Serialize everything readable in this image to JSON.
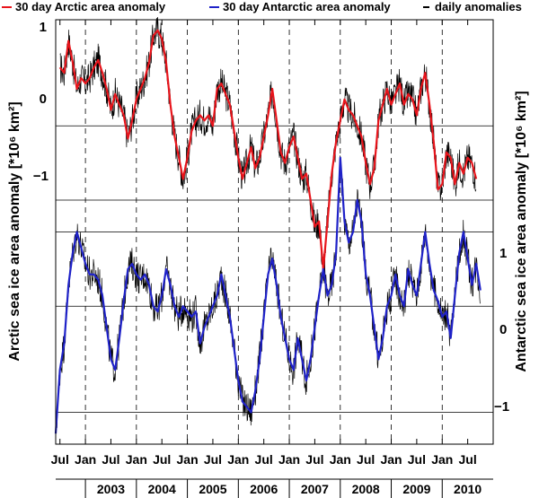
{
  "chart_data": {
    "type": "line",
    "legend": {
      "placement": "top",
      "entries": [
        {
          "label": "30 day Arctic area anomaly",
          "color": "#e8141b"
        },
        {
          "label": "30 day Antarctic area anomaly",
          "color": "#1f22c8"
        },
        {
          "label": "daily anomalies",
          "color": "#000000"
        }
      ]
    },
    "x": {
      "type": "date",
      "range": [
        "2002-06-01",
        "2011-01-01"
      ],
      "month_ticks": [
        "Jul",
        "Jan",
        "Jul",
        "Jan",
        "Jul",
        "Jan",
        "Jul",
        "Jan",
        "Jul",
        "Jan",
        "Jul",
        "Jan",
        "Jul",
        "Jan",
        "Jul",
        "Jan",
        "Jul"
      ],
      "year_labels": [
        "2003",
        "2004",
        "2005",
        "2006",
        "2007",
        "2008",
        "2009",
        "2010"
      ]
    },
    "left_axis": {
      "label": "Arctic sea ice area anomaly [*10⁶ km²]",
      "range": [
        -3.0,
        1.0
      ],
      "tick_labels": [
        "1",
        "0",
        "−1"
      ],
      "ticks": [
        1,
        0,
        -1
      ]
    },
    "right_axis": {
      "label": "Antarctic sea ice area anomaly [*10⁶ km²]",
      "range": [
        -1.3,
        2.7
      ],
      "tick_labels": [
        "1",
        "0",
        "−1"
      ],
      "ticks": [
        1,
        0,
        -1
      ]
    },
    "grid": {
      "horizontal": true,
      "vertical_dashed_at": "January each year"
    },
    "series": [
      {
        "name": "30 day Arctic area anomaly",
        "axis": "left",
        "color": "#e8141b",
        "points": [
          [
            "2002-07-01",
            0.55
          ],
          [
            "2002-08-01",
            0.5
          ],
          [
            "2002-09-01",
            0.8
          ],
          [
            "2002-10-01",
            0.6
          ],
          [
            "2002-11-01",
            0.35
          ],
          [
            "2002-12-01",
            0.45
          ],
          [
            "2003-01-01",
            0.4
          ],
          [
            "2003-02-01",
            0.45
          ],
          [
            "2003-03-01",
            0.55
          ],
          [
            "2003-04-01",
            0.62
          ],
          [
            "2003-05-01",
            0.5
          ],
          [
            "2003-06-01",
            0.35
          ],
          [
            "2003-07-01",
            0.15
          ],
          [
            "2003-08-01",
            0.3
          ],
          [
            "2003-09-01",
            0.2
          ],
          [
            "2003-10-01",
            0.1
          ],
          [
            "2003-11-01",
            -0.12
          ],
          [
            "2003-12-01",
            0.05
          ],
          [
            "2004-01-01",
            0.25
          ],
          [
            "2004-02-01",
            0.35
          ],
          [
            "2004-03-01",
            0.45
          ],
          [
            "2004-04-01",
            0.6
          ],
          [
            "2004-05-01",
            0.85
          ],
          [
            "2004-06-01",
            0.9
          ],
          [
            "2004-07-01",
            0.82
          ],
          [
            "2004-08-01",
            0.6
          ],
          [
            "2004-09-01",
            0.2
          ],
          [
            "2004-10-01",
            -0.1
          ],
          [
            "2004-11-01",
            -0.3
          ],
          [
            "2004-12-01",
            -0.5
          ],
          [
            "2005-01-01",
            -0.3
          ],
          [
            "2005-02-01",
            -0.05
          ],
          [
            "2005-03-01",
            0.05
          ],
          [
            "2005-04-01",
            0.1
          ],
          [
            "2005-05-01",
            0.05
          ],
          [
            "2005-06-01",
            0.1
          ],
          [
            "2005-07-01",
            0.0
          ],
          [
            "2005-08-01",
            0.35
          ],
          [
            "2005-09-01",
            0.4
          ],
          [
            "2005-10-01",
            0.3
          ],
          [
            "2005-11-01",
            0.2
          ],
          [
            "2005-12-01",
            -0.05
          ],
          [
            "2006-01-01",
            -0.3
          ],
          [
            "2006-02-01",
            -0.5
          ],
          [
            "2006-03-01",
            -0.35
          ],
          [
            "2006-04-01",
            -0.2
          ],
          [
            "2006-05-01",
            -0.4
          ],
          [
            "2006-06-01",
            -0.3
          ],
          [
            "2006-07-01",
            -0.1
          ],
          [
            "2006-08-01",
            0.1
          ],
          [
            "2006-09-01",
            0.35
          ],
          [
            "2006-10-01",
            0.05
          ],
          [
            "2006-11-01",
            -0.25
          ],
          [
            "2006-12-01",
            -0.35
          ],
          [
            "2007-01-01",
            -0.2
          ],
          [
            "2007-02-01",
            -0.1
          ],
          [
            "2007-03-01",
            -0.3
          ],
          [
            "2007-04-01",
            -0.5
          ],
          [
            "2007-05-01",
            -0.45
          ],
          [
            "2007-06-01",
            -0.7
          ],
          [
            "2007-07-01",
            -0.95
          ],
          [
            "2007-08-01",
            -0.9
          ],
          [
            "2007-09-01",
            -1.35
          ],
          [
            "2007-10-01",
            -0.9
          ],
          [
            "2007-11-01",
            -0.45
          ],
          [
            "2007-12-01",
            -0.15
          ],
          [
            "2008-01-01",
            0.05
          ],
          [
            "2008-02-01",
            0.25
          ],
          [
            "2008-03-01",
            0.15
          ],
          [
            "2008-04-01",
            0.1
          ],
          [
            "2008-05-01",
            0.0
          ],
          [
            "2008-06-01",
            -0.1
          ],
          [
            "2008-07-01",
            -0.35
          ],
          [
            "2008-08-01",
            -0.55
          ],
          [
            "2008-09-01",
            -0.4
          ],
          [
            "2008-10-01",
            0.05
          ],
          [
            "2008-11-01",
            0.2
          ],
          [
            "2008-12-01",
            0.35
          ],
          [
            "2009-01-01",
            0.2
          ],
          [
            "2009-02-01",
            0.3
          ],
          [
            "2009-03-01",
            0.4
          ],
          [
            "2009-04-01",
            0.2
          ],
          [
            "2009-05-01",
            0.3
          ],
          [
            "2009-06-01",
            0.25
          ],
          [
            "2009-07-01",
            0.1
          ],
          [
            "2009-08-01",
            0.35
          ],
          [
            "2009-09-01",
            0.5
          ],
          [
            "2009-10-01",
            0.2
          ],
          [
            "2009-11-01",
            -0.15
          ],
          [
            "2009-12-01",
            -0.6
          ],
          [
            "2010-01-01",
            -0.55
          ],
          [
            "2010-02-01",
            -0.25
          ],
          [
            "2010-03-01",
            -0.3
          ],
          [
            "2010-04-01",
            -0.55
          ],
          [
            "2010-05-01",
            -0.35
          ],
          [
            "2010-06-01",
            -0.45
          ],
          [
            "2010-07-01",
            -0.3
          ],
          [
            "2010-08-01",
            -0.35
          ],
          [
            "2010-09-01",
            -0.5
          ]
        ]
      },
      {
        "name": "30 day Antarctic area anomaly",
        "axis": "right",
        "color": "#1f22c8",
        "points": [
          [
            "2002-06-01",
            -1.2
          ],
          [
            "2002-07-01",
            -0.6
          ],
          [
            "2002-08-01",
            -0.35
          ],
          [
            "2002-09-01",
            0.2
          ],
          [
            "2002-10-01",
            0.5
          ],
          [
            "2002-11-01",
            0.7
          ],
          [
            "2002-12-01",
            0.55
          ],
          [
            "2003-01-01",
            0.4
          ],
          [
            "2003-02-01",
            0.3
          ],
          [
            "2003-03-01",
            0.3
          ],
          [
            "2003-04-01",
            0.25
          ],
          [
            "2003-05-01",
            0.1
          ],
          [
            "2003-06-01",
            -0.2
          ],
          [
            "2003-07-01",
            -0.5
          ],
          [
            "2003-08-01",
            -0.6
          ],
          [
            "2003-09-01",
            -0.3
          ],
          [
            "2003-10-01",
            0.05
          ],
          [
            "2003-11-01",
            0.35
          ],
          [
            "2003-12-01",
            0.4
          ],
          [
            "2004-01-01",
            0.3
          ],
          [
            "2004-02-01",
            0.25
          ],
          [
            "2004-03-01",
            0.3
          ],
          [
            "2004-04-01",
            0.2
          ],
          [
            "2004-05-01",
            0.0
          ],
          [
            "2004-06-01",
            -0.05
          ],
          [
            "2004-07-01",
            0.1
          ],
          [
            "2004-08-01",
            0.35
          ],
          [
            "2004-09-01",
            0.2
          ],
          [
            "2004-10-01",
            0.0
          ],
          [
            "2004-11-01",
            -0.1
          ],
          [
            "2004-12-01",
            0.0
          ],
          [
            "2005-01-01",
            -0.05
          ],
          [
            "2005-02-01",
            -0.1
          ],
          [
            "2005-03-01",
            -0.05
          ],
          [
            "2005-04-01",
            -0.35
          ],
          [
            "2005-05-01",
            -0.2
          ],
          [
            "2005-06-01",
            -0.1
          ],
          [
            "2005-07-01",
            0.0
          ],
          [
            "2005-08-01",
            0.1
          ],
          [
            "2005-09-01",
            0.3
          ],
          [
            "2005-10-01",
            0.1
          ],
          [
            "2005-11-01",
            -0.1
          ],
          [
            "2005-12-01",
            -0.4
          ],
          [
            "2006-01-01",
            -0.7
          ],
          [
            "2006-02-01",
            -0.9
          ],
          [
            "2006-03-01",
            -0.95
          ],
          [
            "2006-04-01",
            -1.0
          ],
          [
            "2006-05-01",
            -0.8
          ],
          [
            "2006-06-01",
            -0.5
          ],
          [
            "2006-07-01",
            -0.1
          ],
          [
            "2006-08-01",
            0.3
          ],
          [
            "2006-09-01",
            0.45
          ],
          [
            "2006-10-01",
            0.2
          ],
          [
            "2006-11-01",
            -0.1
          ],
          [
            "2006-12-01",
            -0.3
          ],
          [
            "2007-01-01",
            -0.5
          ],
          [
            "2007-02-01",
            -0.6
          ],
          [
            "2007-03-01",
            -0.3
          ],
          [
            "2007-04-01",
            -0.5
          ],
          [
            "2007-05-01",
            -0.7
          ],
          [
            "2007-06-01",
            -0.5
          ],
          [
            "2007-07-01",
            -0.2
          ],
          [
            "2007-08-01",
            0.1
          ],
          [
            "2007-09-01",
            0.35
          ],
          [
            "2007-10-01",
            0.1
          ],
          [
            "2007-11-01",
            0.2
          ],
          [
            "2007-12-01",
            0.5
          ],
          [
            "2008-01-01",
            1.4
          ],
          [
            "2008-02-01",
            0.8
          ],
          [
            "2008-03-01",
            0.6
          ],
          [
            "2008-04-01",
            0.7
          ],
          [
            "2008-05-01",
            1.0
          ],
          [
            "2008-06-01",
            0.8
          ],
          [
            "2008-07-01",
            0.3
          ],
          [
            "2008-08-01",
            0.1
          ],
          [
            "2008-09-01",
            -0.2
          ],
          [
            "2008-10-01",
            -0.5
          ],
          [
            "2008-11-01",
            -0.3
          ],
          [
            "2008-12-01",
            0.0
          ],
          [
            "2009-01-01",
            0.1
          ],
          [
            "2009-02-01",
            0.3
          ],
          [
            "2009-03-01",
            0.1
          ],
          [
            "2009-04-01",
            0.0
          ],
          [
            "2009-05-01",
            0.35
          ],
          [
            "2009-06-01",
            0.2
          ],
          [
            "2009-07-01",
            0.1
          ],
          [
            "2009-08-01",
            0.4
          ],
          [
            "2009-09-01",
            0.7
          ],
          [
            "2009-10-01",
            0.4
          ],
          [
            "2009-11-01",
            0.15
          ],
          [
            "2009-12-01",
            0.05
          ],
          [
            "2010-01-01",
            -0.1
          ],
          [
            "2010-02-01",
            -0.05
          ],
          [
            "2010-03-01",
            -0.3
          ],
          [
            "2010-04-01",
            0.1
          ],
          [
            "2010-05-01",
            0.5
          ],
          [
            "2010-06-01",
            0.7
          ],
          [
            "2010-07-01",
            0.45
          ],
          [
            "2010-08-01",
            0.2
          ],
          [
            "2010-09-01",
            0.4
          ],
          [
            "2010-10-01",
            0.15
          ]
        ]
      }
    ]
  }
}
